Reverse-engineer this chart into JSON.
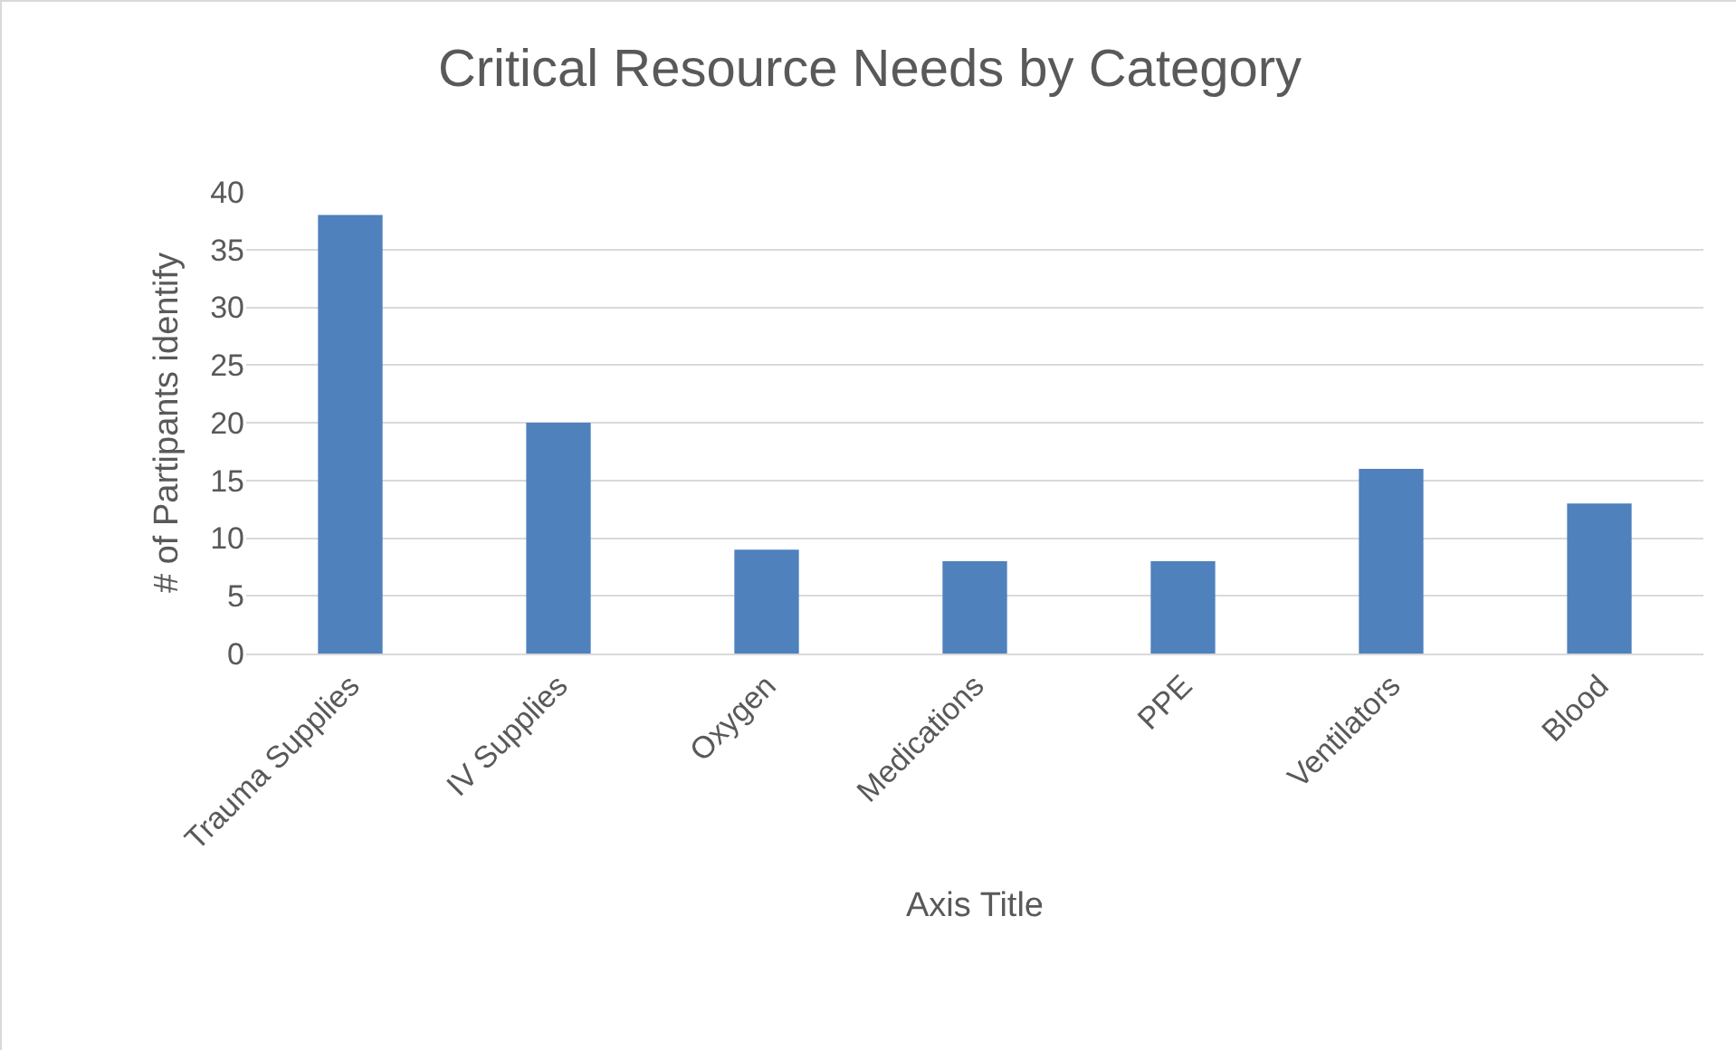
{
  "chart_data": {
    "type": "bar",
    "title": "Critical Resource Needs by Category",
    "xlabel": "Axis Title",
    "ylabel": "# of Partipants identify",
    "categories": [
      "Trauma Supplies",
      "IV Supplies",
      "Oxygen",
      "Medications",
      "PPE",
      "Ventilators",
      "Blood"
    ],
    "values": [
      38,
      20,
      9,
      8,
      8,
      16,
      13
    ],
    "color": "#4f81bd",
    "ylim": [
      0,
      40
    ],
    "yticks": [
      0,
      5,
      10,
      15,
      20,
      25,
      30,
      35,
      40
    ],
    "grid": "y"
  }
}
